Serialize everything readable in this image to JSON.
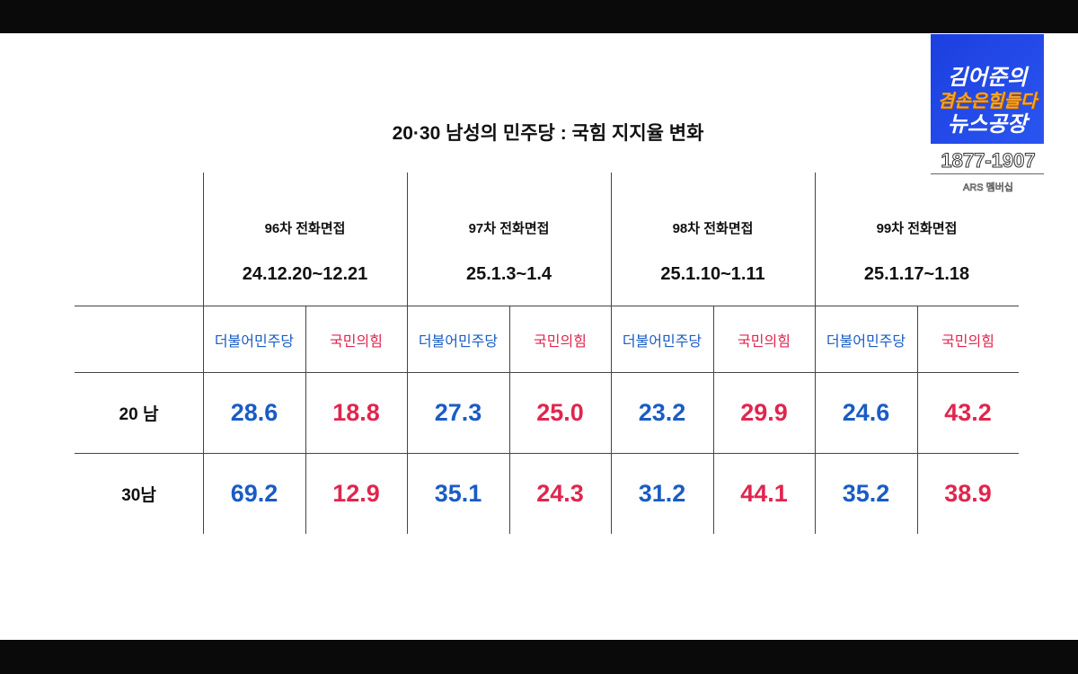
{
  "broadcast": {
    "logo_lines": [
      "김어준의",
      "겸손은힘들다",
      "뉴스공장"
    ],
    "phone": "1877-1907",
    "ars_label": "ARS 멤버십"
  },
  "colors": {
    "democratic": "#1a5cc4",
    "ppp": "#e0264e"
  },
  "chart_data": {
    "type": "table",
    "title": "20·30 남성의 민주당 : 국힘 지지율 변화",
    "parties": [
      "더불어민주당",
      "국민의힘"
    ],
    "surveys": [
      {
        "round": "96차 전화면접",
        "dates": "24.12.20~12.21"
      },
      {
        "round": "97차 전화면접",
        "dates": "25.1.3~1.4"
      },
      {
        "round": "98차 전화면접",
        "dates": "25.1.10~1.11"
      },
      {
        "round": "99차 전화면접",
        "dates": "25.1.17~1.18"
      }
    ],
    "rows": [
      {
        "label": "20 남",
        "values": [
          "28.6",
          "18.8",
          "27.3",
          "25.0",
          "23.2",
          "29.9",
          "24.6",
          "43.2"
        ]
      },
      {
        "label": "30남",
        "values": [
          "69.2",
          "12.9",
          "35.1",
          "24.3",
          "31.2",
          "44.1",
          "35.2",
          "38.9"
        ]
      }
    ]
  }
}
